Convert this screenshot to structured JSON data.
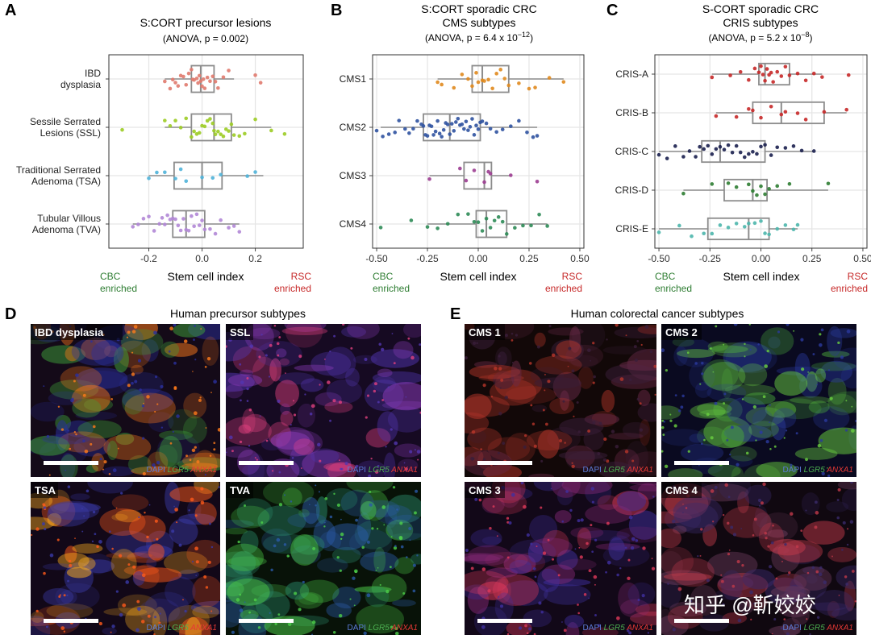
{
  "panels": {
    "A": {
      "letter": "A",
      "title": "S:CORT precursor lesions",
      "subtitle": "(ANOVA, p = 0.002)",
      "xlabel": "Stem cell index",
      "left_note": [
        "CBC",
        "enriched"
      ],
      "right_note": [
        "RSC",
        "enriched"
      ]
    },
    "B": {
      "letter": "B",
      "title": [
        "S:CORT sporadic CRC",
        "CMS subtypes"
      ],
      "subtitle_prefix": "(ANOVA, p = 6.4 x 10",
      "subtitle_exp": "−12",
      "subtitle_suffix": ")",
      "xlabel": "Stem cell index",
      "left_note": [
        "CBC",
        "enriched"
      ],
      "right_note": [
        "RSC",
        "enriched"
      ]
    },
    "C": {
      "letter": "C",
      "title": [
        "S-CORT sporadic CRC",
        "CRIS subtypes"
      ],
      "subtitle_prefix": "(ANOVA, p = 5.2 x 10",
      "subtitle_exp": "−8",
      "subtitle_suffix": ")",
      "xlabel": "Stem cell index",
      "left_note": [
        "CBC",
        "enriched"
      ],
      "right_note": [
        "RSC",
        "enriched"
      ]
    },
    "D": {
      "letter": "D",
      "title": "Human precursor subtypes",
      "images": [
        {
          "label": "IBD dysplasia",
          "colors": [
            "#ff7a1a",
            "#2a2f9e",
            "#3fa33a",
            "#140a18"
          ]
        },
        {
          "label": "SSL",
          "colors": [
            "#e0407e",
            "#5236b0",
            "#8a3bb8",
            "#160a22"
          ]
        },
        {
          "label": "TSA",
          "colors": [
            "#ff5a1a",
            "#3a3aa8",
            "#ffb020",
            "#120818"
          ]
        },
        {
          "label": "TVA",
          "colors": [
            "#4ed04a",
            "#2b5aa8",
            "#2a8a6a",
            "#081208"
          ]
        }
      ]
    },
    "E": {
      "letter": "E",
      "title": "Human colorectal cancer subtypes",
      "images": [
        {
          "label": "CMS 1",
          "colors": [
            "#b8362a",
            "#3a1e3a",
            "#6a2a48",
            "#120808"
          ]
        },
        {
          "label": "CMS 2",
          "colors": [
            "#6ad040",
            "#2a3a9e",
            "#4aa83a",
            "#0a0a20"
          ]
        },
        {
          "label": "CMS 3",
          "colors": [
            "#e03a5a",
            "#4030a0",
            "#8a2a7a",
            "#120818"
          ]
        },
        {
          "label": "CMS 4",
          "colors": [
            "#c03a4a",
            "#3a2a6a",
            "#6a3a5a",
            "#100810"
          ]
        }
      ]
    }
  },
  "legend": {
    "dapi": "DAPI",
    "lgr5": "LGR5",
    "anxa1": "ANXA1"
  },
  "watermark": "知乎 @靳姣姣",
  "colors": {
    "box": "#8c8c8c",
    "grid": "#e5e5e5",
    "cbc": "#2e7d32",
    "rsc": "#c62828",
    "dapi": "#5b7bd5",
    "lgr5": "#4caf50",
    "anxa1": "#e53935"
  },
  "chart_data": [
    {
      "type": "box",
      "panel": "A",
      "title": "S:CORT precursor lesions",
      "xlabel": "Stem cell index",
      "xlim": [
        -0.35,
        0.38
      ],
      "xticks": [
        -0.2,
        0.0,
        0.2
      ],
      "xtick_labels": [
        "-0.2",
        "0.0",
        "0.2"
      ],
      "grid": true,
      "categories": [
        "IBD dysplasia",
        "Sessile Serrated Lesions (SSL)",
        "Traditional Serrated Adenoma (TSA)",
        "Tubular Villous Adenoma (TVA)"
      ],
      "category_lines": [
        [
          "IBD",
          "dysplasia"
        ],
        [
          "Sessile Serrated",
          "Lesions (SSL)"
        ],
        [
          "Traditional Serrated",
          "Adenoma (TSA)"
        ],
        [
          "Tubular Villous",
          "Adenoma (TVA)"
        ]
      ],
      "series": [
        {
          "color": "#e07a6e",
          "box": {
            "min": -0.14,
            "q1": -0.04,
            "median": -0.005,
            "q3": 0.045,
            "max": 0.12
          },
          "points": [
            -0.14,
            -0.12,
            -0.11,
            -0.1,
            -0.09,
            -0.08,
            -0.07,
            -0.06,
            -0.05,
            -0.04,
            -0.035,
            -0.03,
            -0.02,
            -0.015,
            -0.01,
            -0.005,
            0.0,
            0.005,
            0.01,
            0.02,
            0.03,
            0.04,
            0.05,
            0.06,
            0.08,
            0.1,
            0.2,
            0.22
          ]
        },
        {
          "color": "#9ccc25",
          "box": {
            "min": -0.14,
            "q1": -0.04,
            "median": 0.045,
            "q3": 0.11,
            "max": 0.26
          },
          "points": [
            -0.3,
            -0.14,
            -0.12,
            -0.1,
            -0.08,
            -0.06,
            -0.04,
            -0.03,
            -0.02,
            -0.01,
            0.0,
            0.01,
            0.02,
            0.03,
            0.04,
            0.045,
            0.05,
            0.06,
            0.07,
            0.08,
            0.09,
            0.1,
            0.11,
            0.12,
            0.14,
            0.16,
            0.2,
            0.26,
            0.31
          ]
        },
        {
          "color": "#4fb3d9",
          "box": {
            "min": -0.2,
            "q1": -0.105,
            "median": 0.0,
            "q3": 0.075,
            "max": 0.23
          },
          "points": [
            -0.2,
            -0.17,
            -0.14,
            -0.1,
            -0.08,
            -0.06,
            0.0,
            0.04,
            0.07,
            0.17,
            0.2
          ]
        },
        {
          "color": "#b187d6",
          "box": {
            "min": -0.26,
            "q1": -0.11,
            "median": -0.06,
            "q3": 0.01,
            "max": 0.14
          },
          "points": [
            -0.26,
            -0.24,
            -0.22,
            -0.2,
            -0.18,
            -0.16,
            -0.15,
            -0.14,
            -0.13,
            -0.12,
            -0.11,
            -0.1,
            -0.09,
            -0.08,
            -0.07,
            -0.06,
            -0.05,
            -0.04,
            -0.03,
            -0.02,
            -0.01,
            0.0,
            0.01,
            0.03,
            0.05,
            0.07,
            0.1,
            0.12,
            0.14
          ]
        }
      ]
    },
    {
      "type": "box",
      "panel": "B",
      "title": "S:CORT sporadic CRC CMS subtypes",
      "xlabel": "Stem cell index",
      "xlim": [
        -0.52,
        0.52
      ],
      "xticks": [
        -0.5,
        -0.25,
        0.0,
        0.25,
        0.5
      ],
      "xtick_labels": [
        "-0.50",
        "-0.25",
        "0.00",
        "0.25",
        "0.50"
      ],
      "grid": true,
      "categories": [
        "CMS1",
        "CMS2",
        "CMS3",
        "CMS4"
      ],
      "series": [
        {
          "color": "#e08a1e",
          "box": {
            "min": -0.2,
            "q1": -0.03,
            "median": 0.02,
            "q3": 0.15,
            "max": 0.42
          },
          "points": [
            -0.2,
            -0.18,
            -0.12,
            -0.08,
            -0.05,
            -0.03,
            -0.01,
            0.0,
            0.02,
            0.03,
            0.05,
            0.07,
            0.09,
            0.11,
            0.13,
            0.15,
            0.2,
            0.25,
            0.28,
            0.35,
            0.42
          ]
        },
        {
          "color": "#2f52a0",
          "box": {
            "min": -0.48,
            "q1": -0.27,
            "median": -0.14,
            "q3": 0.01,
            "max": 0.29
          },
          "points": [
            -0.5,
            -0.47,
            -0.44,
            -0.41,
            -0.39,
            -0.36,
            -0.34,
            -0.32,
            -0.3,
            -0.28,
            -0.27,
            -0.26,
            -0.25,
            -0.24,
            -0.23,
            -0.22,
            -0.21,
            -0.2,
            -0.19,
            -0.18,
            -0.17,
            -0.16,
            -0.15,
            -0.14,
            -0.13,
            -0.12,
            -0.11,
            -0.1,
            -0.09,
            -0.08,
            -0.07,
            -0.06,
            -0.05,
            -0.04,
            -0.03,
            -0.02,
            -0.01,
            0.0,
            0.01,
            0.02,
            0.04,
            0.06,
            0.09,
            0.12,
            0.16,
            0.2,
            0.24,
            0.27,
            0.29
          ]
        },
        {
          "color": "#9c3d91",
          "box": {
            "min": -0.24,
            "q1": -0.07,
            "median": 0.03,
            "q3": 0.065,
            "max": 0.16
          },
          "points": [
            -0.24,
            -0.09,
            -0.06,
            -0.02,
            0.03,
            0.05,
            0.06,
            0.16,
            0.29
          ]
        },
        {
          "color": "#2e8b57",
          "box": {
            "min": -0.25,
            "q1": -0.01,
            "median": 0.04,
            "q3": 0.14,
            "max": 0.34
          },
          "points": [
            -0.48,
            -0.33,
            -0.25,
            -0.2,
            -0.15,
            -0.1,
            -0.05,
            -0.02,
            0.0,
            0.02,
            0.04,
            0.06,
            0.08,
            0.1,
            0.12,
            0.14,
            0.18,
            0.22,
            0.26,
            0.3,
            0.34
          ]
        }
      ]
    },
    {
      "type": "box",
      "panel": "C",
      "title": "S-CORT sporadic CRC CRIS subtypes",
      "xlabel": "Stem cell index",
      "xlim": [
        -0.52,
        0.52
      ],
      "xticks": [
        -0.5,
        -0.25,
        0.0,
        0.25,
        0.5
      ],
      "xtick_labels": [
        "-0.50",
        "-0.25",
        "0.00",
        "0.25",
        "0.50"
      ],
      "grid": true,
      "categories": [
        "CRIS-A",
        "CRIS-B",
        "CRIS-C",
        "CRIS-D",
        "CRIS-E"
      ],
      "series": [
        {
          "color": "#c62828",
          "box": {
            "min": -0.24,
            "q1": -0.01,
            "median": 0.02,
            "q3": 0.14,
            "max": 0.3
          },
          "points": [
            -0.24,
            -0.15,
            -0.1,
            -0.06,
            -0.03,
            -0.01,
            0.0,
            0.01,
            0.02,
            0.03,
            0.04,
            0.05,
            0.06,
            0.08,
            0.1,
            0.12,
            0.14,
            0.18,
            0.22,
            0.26,
            0.3,
            0.43
          ]
        },
        {
          "color": "#c62828",
          "box": {
            "min": -0.22,
            "q1": -0.04,
            "median": 0.1,
            "q3": 0.31,
            "max": 0.42
          },
          "points": [
            -0.22,
            -0.12,
            -0.06,
            -0.04,
            0.0,
            0.05,
            0.1,
            0.12,
            0.18,
            0.22,
            0.31,
            0.42
          ]
        },
        {
          "color": "#1a1f4e",
          "box": {
            "min": -0.5,
            "q1": -0.29,
            "median": -0.2,
            "q3": 0.02,
            "max": 0.26
          },
          "points": [
            -0.5,
            -0.46,
            -0.42,
            -0.38,
            -0.35,
            -0.32,
            -0.3,
            -0.28,
            -0.26,
            -0.24,
            -0.22,
            -0.2,
            -0.18,
            -0.16,
            -0.14,
            -0.12,
            -0.1,
            -0.08,
            -0.06,
            -0.04,
            -0.02,
            0.0,
            0.02,
            0.05,
            0.08,
            0.12,
            0.16,
            0.2,
            0.26
          ]
        },
        {
          "color": "#2e7d32",
          "box": {
            "min": -0.38,
            "q1": -0.18,
            "median": -0.04,
            "q3": 0.03,
            "max": 0.33
          },
          "points": [
            -0.38,
            -0.24,
            -0.16,
            -0.12,
            -0.06,
            -0.04,
            -0.02,
            0.0,
            0.02,
            0.04,
            0.08,
            0.14,
            0.33
          ]
        },
        {
          "color": "#4db6ac",
          "box": {
            "min": -0.5,
            "q1": -0.26,
            "median": -0.06,
            "q3": 0.04,
            "max": 0.18
          },
          "points": [
            -0.5,
            -0.4,
            -0.34,
            -0.28,
            -0.24,
            -0.2,
            -0.16,
            -0.12,
            -0.08,
            -0.06,
            -0.03,
            0.0,
            0.02,
            0.04,
            0.08,
            0.12,
            0.16,
            0.18
          ]
        }
      ]
    }
  ]
}
